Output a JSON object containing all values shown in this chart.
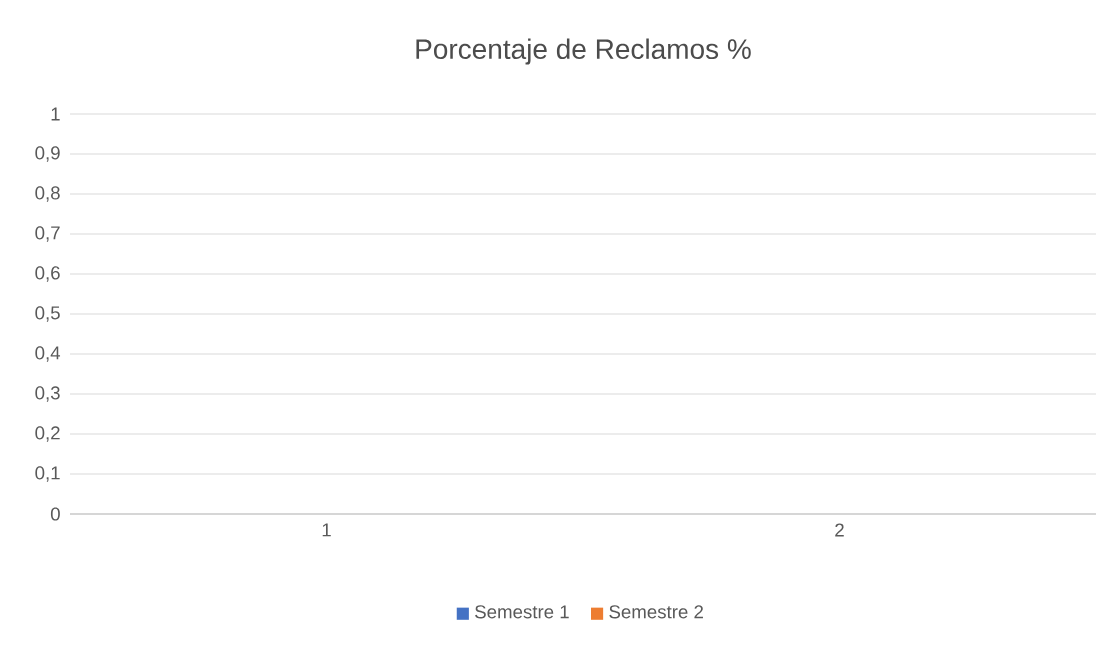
{
  "chart_data": {
    "type": "bar",
    "title": "Porcentaje de Reclamos %",
    "categories": [
      "1",
      "2"
    ],
    "series": [
      {
        "name": "Semestre 1",
        "color": "#4472c4",
        "values": [
          0,
          0
        ]
      },
      {
        "name": "Semestre 2",
        "color": "#ed7d31",
        "values": [
          0,
          0
        ]
      }
    ],
    "ylim": [
      0,
      1
    ],
    "yticks": [
      0,
      {
        "value": 0.1,
        "label": "0,1"
      },
      {
        "value": 0.2,
        "label": "0,2"
      },
      {
        "value": 0.3,
        "label": "0,3"
      },
      {
        "value": 0.4,
        "label": "0,4"
      },
      {
        "value": 0.5,
        "label": "0,5"
      },
      {
        "value": 0.6,
        "label": "0,6"
      },
      {
        "value": 0.7,
        "label": "0,7"
      },
      {
        "value": 0.8,
        "label": "0,8"
      },
      {
        "value": 0.9,
        "label": "0,9"
      },
      1
    ],
    "grid": "y",
    "legend": "bottom"
  }
}
